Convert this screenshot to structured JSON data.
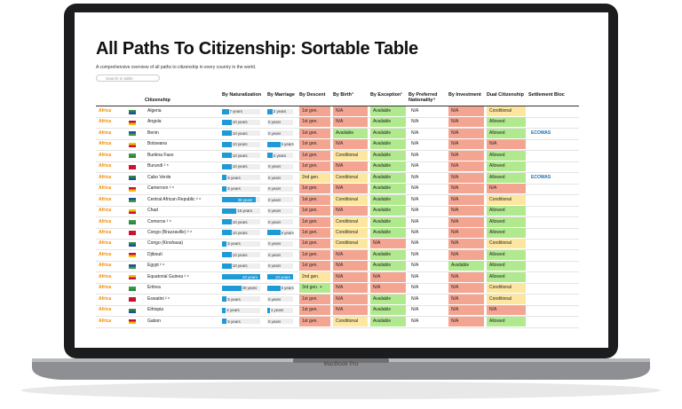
{
  "header": {
    "title": "All Paths To Citizenship: Sortable Table",
    "subtitle": "A comprehensive overview of all paths to citizenship in every country in the world.",
    "search_placeholder": "Search in table",
    "device_label": "MacBook Pro"
  },
  "table": {
    "columns": [
      "Citizenship",
      "By Naturalization",
      "By Marriage",
      "By Descent",
      "By Birth³",
      "By Exception¹",
      "By Preferred Nationality⁴",
      "By Investment",
      "Dual Citizenship",
      "Settlement Bloc"
    ],
    "rows": [
      {
        "region": "Africa",
        "name": "Algeria",
        "nat": {
          "value": 7,
          "label": "7 years"
        },
        "mar": {
          "value": 2,
          "label": "2 years"
        },
        "descent": "1st gen.",
        "birth": "N/A",
        "exception": "Available",
        "preferred": "N/A",
        "investment": "N/A",
        "dual": "Conditional"
      },
      {
        "region": "Africa",
        "name": "Angola",
        "nat": {
          "value": 10,
          "label": "10 years"
        },
        "mar": {
          "value": 0,
          "label": "0 years"
        },
        "descent": "1st gen.",
        "birth": "N/A",
        "exception": "Available",
        "preferred": "N/A",
        "investment": "N/A",
        "dual": "Allowed"
      },
      {
        "region": "Africa",
        "name": "Benin",
        "nat": {
          "value": 10,
          "label": "10 years"
        },
        "mar": {
          "value": 0,
          "label": "0 years"
        },
        "descent": "1st gen.",
        "birth": "Available",
        "exception": "Available",
        "preferred": "N/A",
        "investment": "N/A",
        "dual": "Allowed",
        "bloc": "ECOWAS"
      },
      {
        "region": "Africa",
        "name": "Botswana",
        "nat": {
          "value": 10,
          "label": "10 years"
        },
        "mar": {
          "value": 5,
          "label": "5 years"
        },
        "descent": "1st gen.",
        "birth": "N/A",
        "exception": "Available",
        "preferred": "N/A",
        "investment": "N/A",
        "dual": "N/A"
      },
      {
        "region": "Africa",
        "name": "Burkina Faso",
        "nat": {
          "value": 10,
          "label": "10 years"
        },
        "mar": {
          "value": 2,
          "label": "2 years"
        },
        "descent": "1st gen.",
        "birth": "Conditional",
        "exception": "Available",
        "preferred": "N/A",
        "investment": "N/A",
        "dual": "Allowed"
      },
      {
        "region": "Africa",
        "name": "Burundi ² ⁸",
        "nat": {
          "value": 10,
          "label": "10 years"
        },
        "mar": {
          "value": 0,
          "label": "0 years"
        },
        "descent": "1st gen.",
        "birth": "N/A",
        "exception": "Available",
        "preferred": "N/A",
        "investment": "N/A",
        "dual": "Allowed"
      },
      {
        "region": "Africa",
        "name": "Cabo Verde",
        "nat": {
          "value": 5,
          "label": "5 years"
        },
        "mar": {
          "value": 0,
          "label": "0 years"
        },
        "descent": "2nd gen.",
        "birth": "Conditional",
        "exception": "Available",
        "preferred": "N/A",
        "investment": "N/A",
        "dual": "Allowed",
        "bloc": "ECOWAS"
      },
      {
        "region": "Africa",
        "name": "Cameroon ² ⁸",
        "nat": {
          "value": 5,
          "label": "5 years"
        },
        "mar": {
          "value": 0,
          "label": "0 years"
        },
        "descent": "1st gen.",
        "birth": "N/A",
        "exception": "Available",
        "preferred": "N/A",
        "investment": "N/A",
        "dual": "N/A"
      },
      {
        "region": "Africa",
        "name": "Central African Republic ² ⁸",
        "nat": {
          "value": 35,
          "label": "35 years"
        },
        "mar": {
          "value": 0,
          "label": "0 years"
        },
        "descent": "1st gen.",
        "birth": "Conditional",
        "exception": "Available",
        "preferred": "N/A",
        "investment": "N/A",
        "dual": "Conditional"
      },
      {
        "region": "Africa",
        "name": "Chad",
        "nat": {
          "value": 15,
          "label": "15 years"
        },
        "mar": {
          "value": 0,
          "label": "0 years"
        },
        "descent": "1st gen.",
        "birth": "N/A",
        "exception": "Available",
        "preferred": "N/A",
        "investment": "N/A",
        "dual": "Allowed"
      },
      {
        "region": "Africa",
        "name": "Comoros ² ⁸",
        "nat": {
          "value": 10,
          "label": "10 years"
        },
        "mar": {
          "value": 0,
          "label": "0 years"
        },
        "descent": "1st gen.",
        "birth": "Conditional",
        "exception": "Available",
        "preferred": "N/A",
        "investment": "N/A",
        "dual": "Allowed"
      },
      {
        "region": "Africa",
        "name": "Congo (Brazzaville) ² ⁸",
        "nat": {
          "value": 10,
          "label": "10 years"
        },
        "mar": {
          "value": 5,
          "label": "5 years"
        },
        "descent": "1st gen.",
        "birth": "Conditional",
        "exception": "Available",
        "preferred": "N/A",
        "investment": "N/A",
        "dual": "Allowed"
      },
      {
        "region": "Africa",
        "name": "Congo (Kinshasa)",
        "nat": {
          "value": 5,
          "label": "5 years"
        },
        "mar": {
          "value": 0,
          "label": "0 years"
        },
        "descent": "1st gen.",
        "birth": "Conditional",
        "exception": "N/A",
        "preferred": "N/A",
        "investment": "N/A",
        "dual": "Conditional"
      },
      {
        "region": "Africa",
        "name": "Djibouti",
        "nat": {
          "value": 10,
          "label": "10 years"
        },
        "mar": {
          "value": 0,
          "label": "0 years"
        },
        "descent": "1st gen.",
        "birth": "N/A",
        "exception": "Available",
        "preferred": "N/A",
        "investment": "N/A",
        "dual": "Allowed"
      },
      {
        "region": "Africa",
        "name": "Egypt ² ⁸",
        "nat": {
          "value": 10,
          "label": "10 years"
        },
        "mar": {
          "value": 0,
          "label": "0 years"
        },
        "descent": "1st gen.",
        "birth": "N/A",
        "exception": "Available",
        "preferred": "N/A",
        "investment": "Available",
        "dual": "Allowed"
      },
      {
        "region": "Africa",
        "name": "Equatorial Guinea ² ⁸",
        "nat": {
          "value": 40,
          "label": "40 years"
        },
        "mar": {
          "value": 10,
          "label": "10 years"
        },
        "descent": "2nd gen.",
        "birth": "N/A",
        "exception": "N/A",
        "preferred": "N/A",
        "investment": "N/A",
        "dual": "Allowed"
      },
      {
        "region": "Africa",
        "name": "Eritrea",
        "nat": {
          "value": 20,
          "label": "20 years"
        },
        "mar": {
          "value": 5,
          "label": "5 years"
        },
        "descent": "3rd gen. +",
        "birth": "N/A",
        "exception": "N/A",
        "preferred": "N/A",
        "investment": "N/A",
        "dual": "Conditional"
      },
      {
        "region": "Africa",
        "name": "Eswatini ² ⁸",
        "nat": {
          "value": 5,
          "label": "5 years"
        },
        "mar": {
          "value": 0,
          "label": "0 years"
        },
        "descent": "1st gen.",
        "birth": "N/A",
        "exception": "Available",
        "preferred": "N/A",
        "investment": "N/A",
        "dual": "Conditional"
      },
      {
        "region": "Africa",
        "name": "Ethiopia",
        "nat": {
          "value": 4,
          "label": "4 years"
        },
        "mar": {
          "value": 1,
          "label": "1 years"
        },
        "descent": "1st gen.",
        "birth": "N/A",
        "exception": "Available",
        "preferred": "N/A",
        "investment": "N/A",
        "dual": "N/A"
      },
      {
        "region": "Africa",
        "name": "Gabon",
        "nat": {
          "value": 5,
          "label": "5 years"
        },
        "mar": {
          "value": 0,
          "label": "0 years"
        },
        "descent": "1st gen.",
        "birth": "Conditional",
        "exception": "Available",
        "preferred": "N/A",
        "investment": "N/A",
        "dual": "Allowed"
      }
    ]
  }
}
